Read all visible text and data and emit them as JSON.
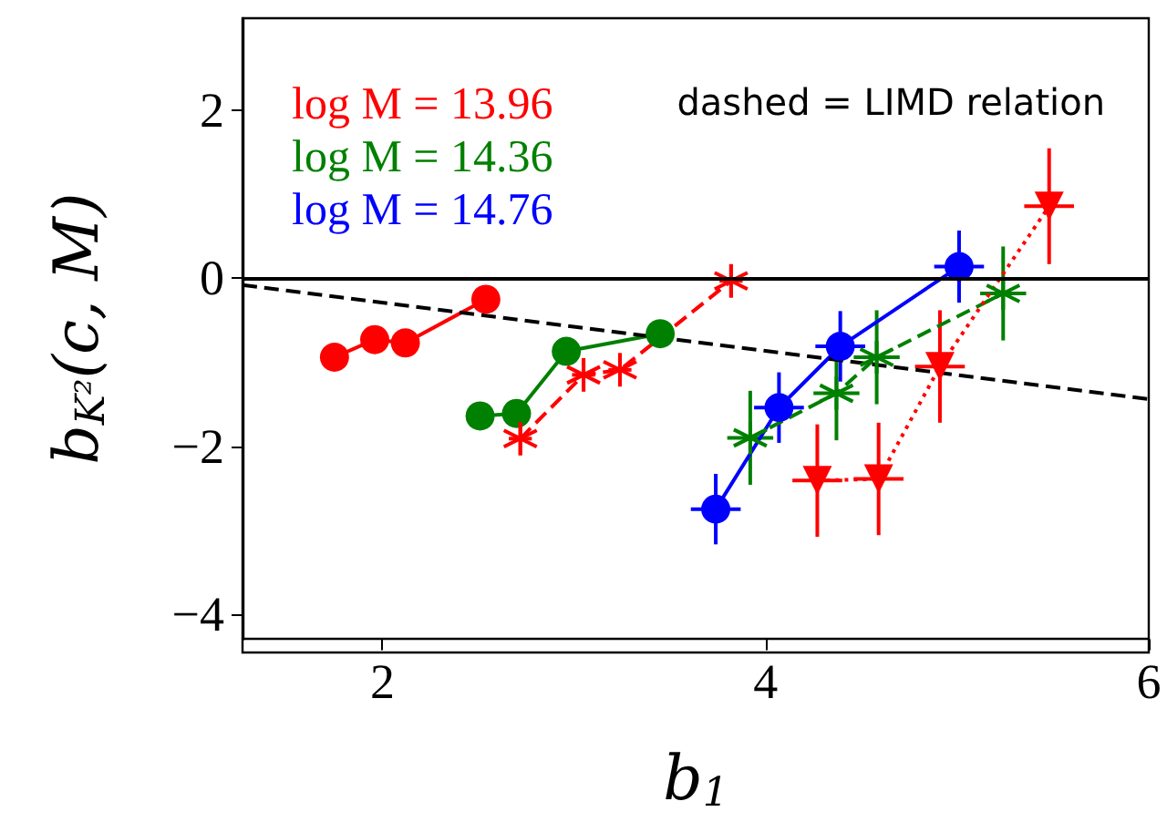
{
  "chart_data": {
    "type": "line",
    "xlabel": "b$_{1}$",
    "ylabel": "b$_{K²}$(c, M)",
    "xlim": [
      1.27,
      6.0
    ],
    "ylim": [
      -4.3,
      3.1
    ],
    "xticks": [
      2,
      4,
      6
    ],
    "yticks": [
      -4,
      -2,
      0,
      2
    ],
    "grid": false,
    "legend": "top left",
    "annotations": [
      "dashed = LIMD relation"
    ],
    "ref_lines": [
      {
        "axis": "y",
        "value": 0,
        "color": "#000000",
        "line_style": "solid"
      }
    ],
    "series": [
      {
        "name": "log M = 13.96",
        "color": "#ff0000",
        "marker": "circle",
        "line_style": "solid",
        "x": [
          1.75,
          1.96,
          2.12,
          2.54
        ],
        "values": [
          -0.94,
          -0.73,
          -0.77,
          -0.25
        ]
      },
      {
        "name": "log M = 14.36",
        "color": "#008000",
        "marker": "circle",
        "line_style": "solid",
        "x": [
          2.51,
          2.7,
          2.96,
          3.45
        ],
        "values": [
          -1.64,
          -1.61,
          -0.87,
          -0.66
        ]
      },
      {
        "name": "log M = 14.76",
        "color": "#0000ff",
        "marker": "circle",
        "line_style": "solid",
        "x": [
          3.74,
          4.07,
          4.39,
          5.01
        ],
        "values": [
          -2.75,
          -1.54,
          -0.81,
          0.14
        ],
        "errors": [
          0.42,
          0.42,
          0.42,
          0.43
        ],
        "xerrors": [
          0.13,
          0.13,
          0.13,
          0.13
        ]
      },
      {
        "color": "#ff0000",
        "marker": "cross",
        "line_style": "dashed",
        "x": [
          2.72,
          3.05,
          3.24,
          3.82
        ],
        "values": [
          -1.91,
          -1.15,
          -1.09,
          -0.03
        ],
        "errors": [
          0.2,
          0.2,
          0.2,
          0.2
        ],
        "xerrors": [
          0.06,
          0.06,
          0.06,
          0.06
        ]
      },
      {
        "color": "#008000",
        "marker": "cross",
        "line_style": "dashed",
        "x": [
          3.92,
          4.37,
          4.58,
          5.24
        ],
        "values": [
          -1.9,
          -1.37,
          -0.94,
          -0.18
        ],
        "errors": [
          0.56,
          0.56,
          0.56,
          0.56
        ],
        "xerrors": [
          0.12,
          0.12,
          0.12,
          0.12
        ]
      },
      {
        "color": "#ff0000",
        "marker": "triangle",
        "line_style": "dotted",
        "x": [
          4.27,
          4.59,
          4.91,
          5.48
        ],
        "values": [
          -2.41,
          -2.39,
          -1.05,
          0.86
        ],
        "errors": [
          0.67,
          0.67,
          0.67,
          0.69
        ],
        "xerrors": [
          0.13,
          0.13,
          0.13,
          0.13
        ]
      },
      {
        "color": "#000000",
        "marker": "none",
        "line_style": "dashed",
        "x": [
          1.27,
          6.0
        ],
        "values": [
          -0.08,
          -1.44
        ]
      }
    ]
  }
}
